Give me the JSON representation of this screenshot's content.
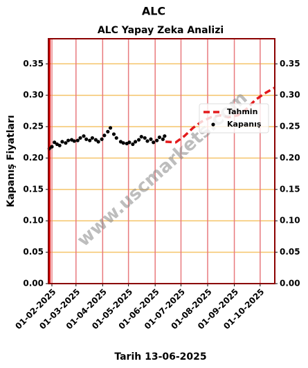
{
  "chart_data": {
    "type": "line",
    "suptitle": "ALC",
    "title": "ALC Yapay Zeka Analizi",
    "xlabel": "Tarih 13-06-2025",
    "ylabel": "Kapanış Fiyatları",
    "watermark": "www.uscmarkets.com",
    "legend": "upper right",
    "grid": true,
    "xlim": [
      "2025-01-28",
      "2025-10-18"
    ],
    "xticks": [
      {
        "value": "2025-02-01",
        "label": "01-02-2025"
      },
      {
        "value": "2025-03-01",
        "label": "01-03-2025"
      },
      {
        "value": "2025-04-01",
        "label": "01-04-2025"
      },
      {
        "value": "2025-05-01",
        "label": "01-05-2025"
      },
      {
        "value": "2025-06-01",
        "label": "01-06-2025"
      },
      {
        "value": "2025-07-01",
        "label": "01-07-2025"
      },
      {
        "value": "2025-08-01",
        "label": "01-08-2025"
      },
      {
        "value": "2025-09-01",
        "label": "01-09-2025"
      },
      {
        "value": "2025-10-01",
        "label": "01-10-2025"
      }
    ],
    "ylim": [
      0,
      0.39
    ],
    "yticks": [
      {
        "value": 0,
        "label": "0.00"
      },
      {
        "value": 0.05,
        "label": "0.05"
      },
      {
        "value": 0.1,
        "label": "0.10"
      },
      {
        "value": 0.15,
        "label": "0.15"
      },
      {
        "value": 0.2,
        "label": "0.20"
      },
      {
        "value": 0.25,
        "label": "0.25"
      },
      {
        "value": 0.3,
        "label": "0.30"
      },
      {
        "value": 0.35,
        "label": "0.35"
      }
    ],
    "series": [
      {
        "name": "Tahmin",
        "color": "#e31a1c",
        "style": "dashed",
        "x": [
          "2025-06-13",
          "2025-06-25",
          "2025-07-05",
          "2025-07-15",
          "2025-07-25",
          "2025-08-05",
          "2025-08-15",
          "2025-08-25",
          "2025-09-05",
          "2025-09-15",
          "2025-09-25",
          "2025-10-05",
          "2025-10-18"
        ],
        "values": [
          0.226,
          0.225,
          0.235,
          0.248,
          0.258,
          0.265,
          0.268,
          0.265,
          0.268,
          0.278,
          0.292,
          0.302,
          0.312
        ]
      },
      {
        "name": "Kapanış",
        "color": "#000000",
        "style": "dots",
        "x": [
          "2025-01-29",
          "2025-02-01",
          "2025-02-04",
          "2025-02-07",
          "2025-02-10",
          "2025-02-13",
          "2025-02-17",
          "2025-02-20",
          "2025-02-24",
          "2025-02-27",
          "2025-03-03",
          "2025-03-06",
          "2025-03-10",
          "2025-03-13",
          "2025-03-17",
          "2025-03-20",
          "2025-03-24",
          "2025-03-27",
          "2025-03-31",
          "2025-04-03",
          "2025-04-07",
          "2025-04-10",
          "2025-04-14",
          "2025-04-17",
          "2025-04-22",
          "2025-04-25",
          "2025-04-29",
          "2025-05-02",
          "2025-05-06",
          "2025-05-09",
          "2025-05-13",
          "2025-05-16",
          "2025-05-20",
          "2025-05-23",
          "2025-05-27",
          "2025-05-30",
          "2025-06-03",
          "2025-06-06",
          "2025-06-10",
          "2025-06-12"
        ],
        "values": [
          0.215,
          0.218,
          0.225,
          0.222,
          0.22,
          0.226,
          0.224,
          0.228,
          0.229,
          0.227,
          0.228,
          0.232,
          0.235,
          0.23,
          0.228,
          0.232,
          0.229,
          0.226,
          0.23,
          0.236,
          0.242,
          0.248,
          0.238,
          0.232,
          0.226,
          0.224,
          0.223,
          0.225,
          0.222,
          0.226,
          0.229,
          0.234,
          0.232,
          0.227,
          0.23,
          0.225,
          0.228,
          0.233,
          0.23,
          0.235
        ]
      }
    ]
  }
}
